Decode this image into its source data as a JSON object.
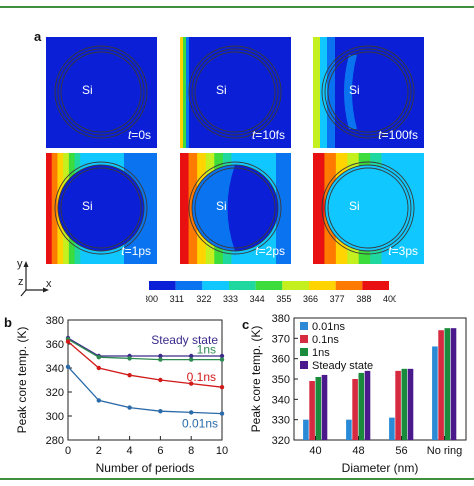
{
  "panel_labels": {
    "a": "a",
    "b": "b",
    "c": "c"
  },
  "tiles": [
    {
      "si": "Si",
      "time": "0s"
    },
    {
      "si": "Si",
      "time": "10fs"
    },
    {
      "si": "Si",
      "time": "100fs"
    },
    {
      "si": "Si",
      "time": "1ps"
    },
    {
      "si": "Si",
      "time": "2ps"
    },
    {
      "si": "Si",
      "time": "3ps"
    }
  ],
  "time_prefix": "t",
  "time_eq": "=",
  "axes_labels": {
    "y": "y",
    "z": "z",
    "x": "x"
  },
  "colors": {
    "scale": [
      "#0a1fd6",
      "#0a74f0",
      "#10c8ff",
      "#1ed8a0",
      "#3cdc3c",
      "#c4f020",
      "#ffd400",
      "#ff7a00",
      "#e81010"
    ],
    "line_series": [
      "#3a2a8a",
      "#2f8a50",
      "#d11a1a",
      "#2a6aa8"
    ],
    "bar_series": [
      "#2a8ad6",
      "#d62a40",
      "#1a8a3c",
      "#4a1a8c"
    ]
  },
  "colorbar": {
    "ticks": [
      "300",
      "311",
      "322",
      "333",
      "344",
      "355",
      "366",
      "377",
      "388",
      "400K"
    ]
  },
  "chart_data": [
    {
      "type": "line",
      "title": "",
      "xlabel": "Number of periods",
      "ylabel": "Peak core temp. (K)",
      "xlim": [
        0,
        10
      ],
      "ylim": [
        280,
        380
      ],
      "xticks": [
        "0",
        "2",
        "4",
        "6",
        "8",
        "10"
      ],
      "yticks": [
        "280",
        "300",
        "320",
        "340",
        "360",
        "380"
      ],
      "grid": false,
      "x": [
        0,
        2,
        4,
        6,
        8,
        10
      ],
      "series": [
        {
          "name": "Steady state",
          "values": [
            365,
            350,
            350,
            350,
            350,
            350
          ]
        },
        {
          "name": "1ns",
          "values": [
            364,
            349,
            348,
            347,
            347,
            347
          ]
        },
        {
          "name": "0.1ns",
          "values": [
            362,
            340,
            334,
            330,
            327,
            324
          ]
        },
        {
          "name": "0.01ns",
          "values": [
            341,
            313,
            307,
            304,
            303,
            302
          ]
        }
      ]
    },
    {
      "type": "bar",
      "title": "",
      "xlabel": "Diameter (nm)",
      "ylabel": "Peak core temp. (K)",
      "ylim": [
        320,
        380
      ],
      "yticks": [
        "320",
        "330",
        "340",
        "350",
        "360",
        "370",
        "380"
      ],
      "categories": [
        "40",
        "48",
        "56",
        "No ring"
      ],
      "legend": "top-left",
      "series": [
        {
          "name": "0.01ns",
          "values": [
            330,
            330,
            331,
            366
          ]
        },
        {
          "name": "0.1ns",
          "values": [
            349,
            350,
            354,
            374
          ]
        },
        {
          "name": "1ns",
          "values": [
            351,
            353,
            355,
            375
          ]
        },
        {
          "name": "Steady state",
          "values": [
            352,
            354,
            355,
            375
          ]
        }
      ]
    }
  ]
}
